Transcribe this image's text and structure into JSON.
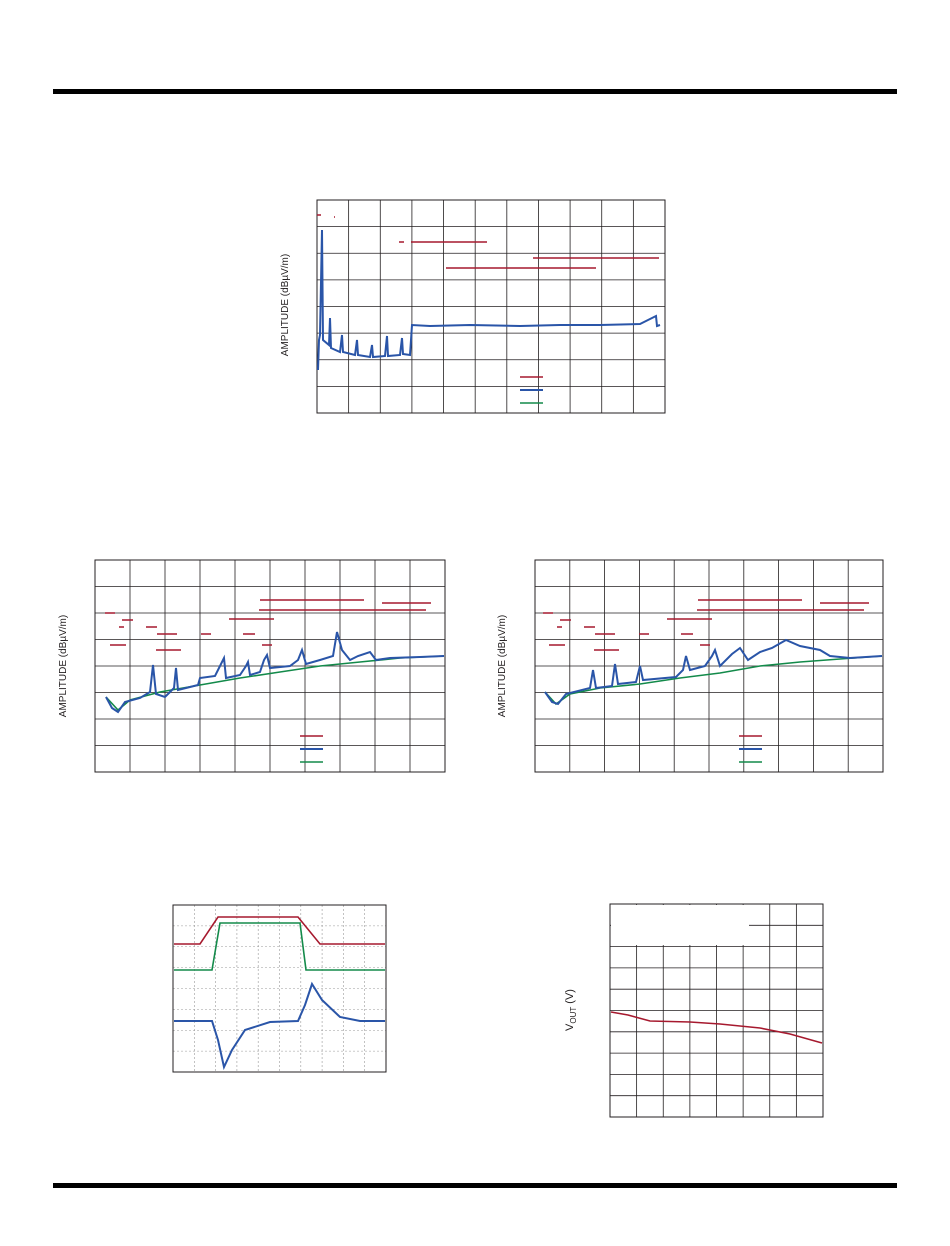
{
  "charts": [
    {
      "y_label": "AMPLITUDE (dBµV/m)"
    },
    {
      "y_label": "AMPLITUDE (dBµV/m)"
    },
    {
      "y_label": "AMPLITUDE (dBµV/m)"
    },
    {
      "y_label": {
        "main": "V",
        "sub": "OUT",
        "rest": " (V)"
      }
    }
  ]
}
